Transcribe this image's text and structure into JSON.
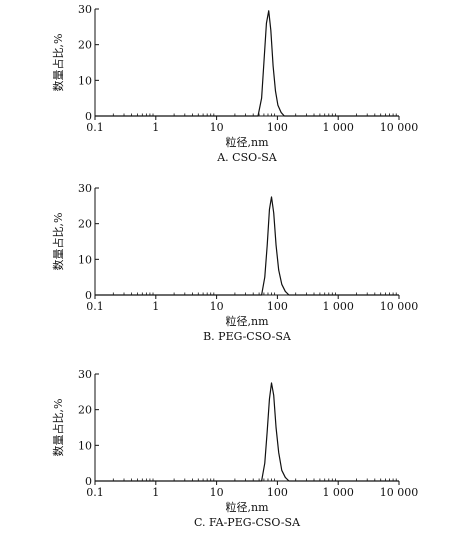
{
  "chart_data": [
    {
      "type": "line",
      "caption": "A. CSO-SA",
      "xlabel": "粒径,nm",
      "ylabel": "数量占比,%",
      "x_scale": "log",
      "xlim": [
        0.1,
        10000
      ],
      "ylim": [
        0,
        30
      ],
      "x_ticks": [
        0.1,
        1,
        10,
        100,
        1000,
        10000
      ],
      "x_tick_labels": [
        "0.1",
        "1",
        "10",
        "100",
        "1 000",
        "10 000"
      ],
      "y_ticks": [
        0,
        10,
        20,
        30
      ],
      "y_tick_labels": [
        "0",
        "10",
        "20",
        "30"
      ],
      "grid": false,
      "series": [
        {
          "x": [
            0.1,
            10,
            48,
            55,
            60,
            66,
            72,
            78,
            85,
            93,
            102,
            115,
            130,
            10000
          ],
          "y": [
            0,
            0,
            0,
            5,
            15,
            26,
            29.5,
            24,
            14,
            7,
            3,
            1,
            0,
            0
          ]
        }
      ]
    },
    {
      "type": "line",
      "caption": "B. PEG-CSO-SA",
      "xlabel": "粒径,nm",
      "ylabel": "数量占比,%",
      "x_scale": "log",
      "xlim": [
        0.1,
        10000
      ],
      "ylim": [
        0,
        30
      ],
      "x_ticks": [
        0.1,
        1,
        10,
        100,
        1000,
        10000
      ],
      "x_tick_labels": [
        "0.1",
        "1",
        "10",
        "100",
        "1 000",
        "10 000"
      ],
      "y_ticks": [
        0,
        10,
        20,
        30
      ],
      "y_tick_labels": [
        "0",
        "10",
        "20",
        "30"
      ],
      "grid": false,
      "series": [
        {
          "x": [
            0.1,
            10,
            55,
            62,
            68,
            74,
            80,
            87,
            95,
            105,
            118,
            135,
            155,
            10000
          ],
          "y": [
            0,
            0,
            0,
            5,
            14,
            24,
            27.5,
            23,
            14,
            7,
            3,
            1,
            0,
            0
          ]
        }
      ]
    },
    {
      "type": "line",
      "caption": "C. FA-PEG-CSO-SA",
      "xlabel": "粒径,nm",
      "ylabel": "数量占比,%",
      "x_scale": "log",
      "xlim": [
        0.1,
        10000
      ],
      "ylim": [
        0,
        30
      ],
      "x_ticks": [
        0.1,
        1,
        10,
        100,
        1000,
        10000
      ],
      "x_tick_labels": [
        "0.1",
        "1",
        "10",
        "100",
        "1 000",
        "10 000"
      ],
      "y_ticks": [
        0,
        10,
        20,
        30
      ],
      "y_tick_labels": [
        "0",
        "10",
        "20",
        "30"
      ],
      "grid": false,
      "series": [
        {
          "x": [
            0.1,
            10,
            55,
            62,
            68,
            74,
            80,
            87,
            95,
            105,
            118,
            135,
            155,
            10000
          ],
          "y": [
            0,
            0,
            0,
            5,
            14,
            23,
            27.5,
            24,
            15,
            8,
            3,
            1,
            0,
            0
          ]
        }
      ]
    }
  ]
}
